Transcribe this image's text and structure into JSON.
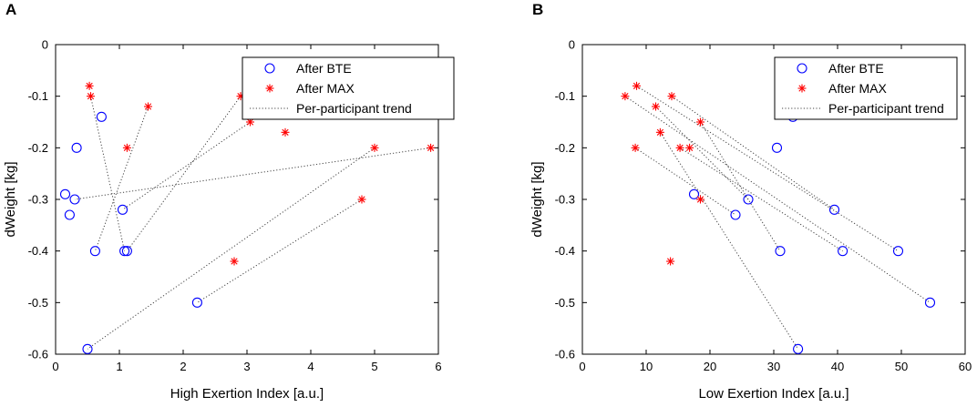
{
  "legend": {
    "bte": "After BTE",
    "max": "After MAX",
    "trend": "Per-participant trend"
  },
  "colors": {
    "bte": "#0000ff",
    "max": "#ff0000",
    "trend": "#444444"
  },
  "chart_data": [
    {
      "panel": "A",
      "type": "scatter",
      "xlabel": "High Exertion Index [a.u.]",
      "ylabel": "dWeight [kg]",
      "xlim": [
        0,
        6
      ],
      "ylim": [
        -0.6,
        0
      ],
      "xticks": [
        0,
        1,
        2,
        3,
        4,
        5,
        6
      ],
      "yticks": [
        0,
        -0.1,
        -0.2,
        -0.3,
        -0.4,
        -0.5,
        -0.6
      ],
      "legend_position": "top-right",
      "series": [
        {
          "name": "After BTE",
          "marker": "circle",
          "points": [
            [
              0.72,
              -0.14
            ],
            [
              0.33,
              -0.2
            ],
            [
              0.15,
              -0.29
            ],
            [
              0.3,
              -0.3
            ],
            [
              0.22,
              -0.33
            ],
            [
              1.05,
              -0.32
            ],
            [
              0.62,
              -0.4
            ],
            [
              1.08,
              -0.4
            ],
            [
              1.12,
              -0.4
            ],
            [
              2.22,
              -0.5
            ],
            [
              0.5,
              -0.59
            ]
          ]
        },
        {
          "name": "After MAX",
          "marker": "asterisk",
          "points": [
            [
              0.53,
              -0.08
            ],
            [
              0.55,
              -0.1
            ],
            [
              1.45,
              -0.12
            ],
            [
              2.9,
              -0.1
            ],
            [
              1.12,
              -0.2
            ],
            [
              3.05,
              -0.15
            ],
            [
              3.6,
              -0.17
            ],
            [
              5.0,
              -0.2
            ],
            [
              5.88,
              -0.2
            ],
            [
              4.8,
              -0.3
            ],
            [
              2.8,
              -0.42
            ]
          ]
        }
      ],
      "trends": [
        [
          [
            0.55,
            -0.1
          ],
          [
            1.08,
            -0.4
          ]
        ],
        [
          [
            1.45,
            -0.12
          ],
          [
            0.62,
            -0.4
          ]
        ],
        [
          [
            2.9,
            -0.1
          ],
          [
            1.12,
            -0.4
          ]
        ],
        [
          [
            5.88,
            -0.2
          ],
          [
            0.3,
            -0.3
          ]
        ],
        [
          [
            5.0,
            -0.2
          ],
          [
            0.5,
            -0.59
          ]
        ],
        [
          [
            4.8,
            -0.3
          ],
          [
            2.22,
            -0.5
          ]
        ],
        [
          [
            3.05,
            -0.15
          ],
          [
            1.05,
            -0.32
          ]
        ]
      ]
    },
    {
      "panel": "B",
      "type": "scatter",
      "xlabel": "Low Exertion Index [a.u.]",
      "ylabel": "dWeight [kg]",
      "xlim": [
        0,
        60
      ],
      "ylim": [
        -0.6,
        0
      ],
      "xticks": [
        0,
        10,
        20,
        30,
        40,
        50,
        60
      ],
      "yticks": [
        0,
        -0.1,
        -0.2,
        -0.3,
        -0.4,
        -0.5,
        -0.6
      ],
      "legend_position": "top-right",
      "series": [
        {
          "name": "After BTE",
          "marker": "circle",
          "points": [
            [
              33.0,
              -0.14
            ],
            [
              30.5,
              -0.2
            ],
            [
              17.5,
              -0.29
            ],
            [
              26.0,
              -0.3
            ],
            [
              24.0,
              -0.33
            ],
            [
              39.5,
              -0.32
            ],
            [
              31.0,
              -0.4
            ],
            [
              40.8,
              -0.4
            ],
            [
              49.5,
              -0.4
            ],
            [
              54.5,
              -0.5
            ],
            [
              33.8,
              -0.59
            ]
          ]
        },
        {
          "name": "After MAX",
          "marker": "asterisk",
          "points": [
            [
              6.7,
              -0.1
            ],
            [
              8.5,
              -0.08
            ],
            [
              11.5,
              -0.12
            ],
            [
              14.0,
              -0.1
            ],
            [
              12.2,
              -0.17
            ],
            [
              8.3,
              -0.2
            ],
            [
              15.3,
              -0.2
            ],
            [
              16.8,
              -0.2
            ],
            [
              18.5,
              -0.15
            ],
            [
              18.5,
              -0.3
            ],
            [
              13.8,
              -0.42
            ]
          ]
        }
      ],
      "trends": [
        [
          [
            6.7,
            -0.1
          ],
          [
            54.5,
            -0.5
          ]
        ],
        [
          [
            8.5,
            -0.08
          ],
          [
            49.5,
            -0.4
          ]
        ],
        [
          [
            11.5,
            -0.12
          ],
          [
            26.0,
            -0.3
          ]
        ],
        [
          [
            14.0,
            -0.1
          ],
          [
            39.5,
            -0.32
          ]
        ],
        [
          [
            12.2,
            -0.17
          ],
          [
            33.8,
            -0.59
          ]
        ],
        [
          [
            8.3,
            -0.2
          ],
          [
            24.0,
            -0.33
          ]
        ],
        [
          [
            18.5,
            -0.15
          ],
          [
            31.0,
            -0.4
          ]
        ],
        [
          [
            15.3,
            -0.2
          ],
          [
            40.8,
            -0.4
          ]
        ]
      ]
    }
  ]
}
